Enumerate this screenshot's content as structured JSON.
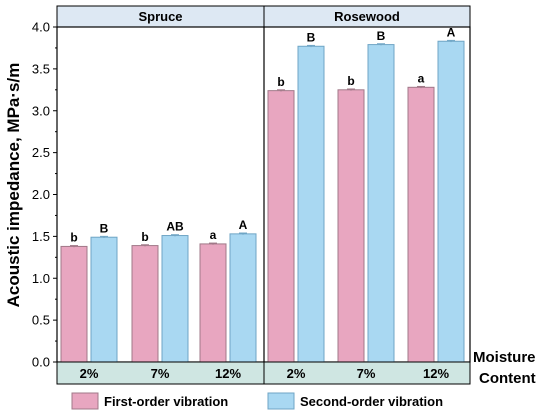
{
  "chart_data": {
    "type": "bar",
    "ylabel": "Acoustic impedance, MPa·s/m",
    "xlabel_line1": "Moisture",
    "xlabel_line2": "Content",
    "ylim": [
      0.0,
      4.0
    ],
    "yticks": [
      "0.0",
      "0.5",
      "1.0",
      "1.5",
      "2.0",
      "2.5",
      "3.0",
      "3.5",
      "4.0"
    ],
    "colors": {
      "first": "#e8a6c0",
      "second": "#a9d8f2",
      "first_edge": "#a07888",
      "second_edge": "#6fa5c5",
      "panel_band": "#dde8f3",
      "cat_band": "#cfe6e2"
    },
    "legend_position": "bottom",
    "series": [
      {
        "name": "First-order vibration",
        "key": "first"
      },
      {
        "name": "Second-order vibration",
        "key": "second"
      }
    ],
    "panels": [
      {
        "title": "Spruce",
        "categories": [
          "2%",
          "7%",
          "12%"
        ],
        "first": [
          1.38,
          1.39,
          1.41
        ],
        "second": [
          1.49,
          1.51,
          1.53
        ],
        "first_err": [
          0.01,
          0.01,
          0.01
        ],
        "second_err": [
          0.01,
          0.01,
          0.01
        ],
        "first_sig": [
          "b",
          "b",
          "a"
        ],
        "second_sig": [
          "B",
          "AB",
          "A"
        ]
      },
      {
        "title": "Rosewood",
        "categories": [
          "2%",
          "7%",
          "12%"
        ],
        "first": [
          3.24,
          3.25,
          3.28
        ],
        "second": [
          3.77,
          3.79,
          3.83
        ],
        "first_err": [
          0.01,
          0.01,
          0.01
        ],
        "second_err": [
          0.01,
          0.01,
          0.01
        ],
        "first_sig": [
          "b",
          "b",
          "a"
        ],
        "second_sig": [
          "B",
          "B",
          "A"
        ]
      }
    ]
  }
}
